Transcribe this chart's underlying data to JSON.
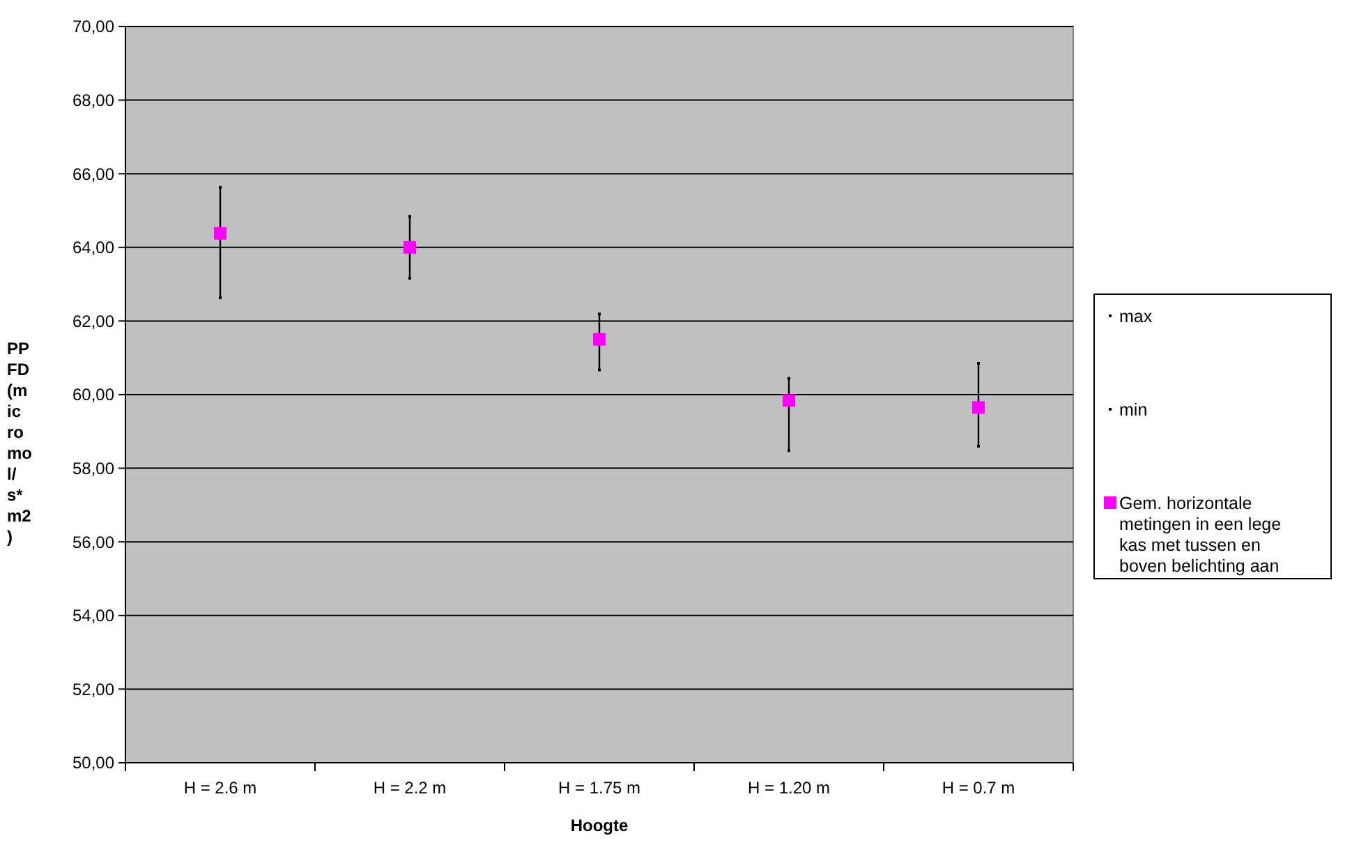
{
  "chart_data": {
    "type": "scatter",
    "xlabel": "Hoogte",
    "ylabel": "PPFD (micromol/s*m2)",
    "categories": [
      "H = 2.6 m",
      "H = 2.2 m",
      "H = 1.75 m",
      "H = 1.20 m",
      "H = 0.7 m"
    ],
    "series": [
      {
        "name": "max",
        "color": "#000000",
        "marker": "square",
        "values": [
          65.63,
          64.84,
          62.19,
          60.44,
          60.85
        ]
      },
      {
        "name": "min",
        "color": "#000000",
        "marker": "square",
        "values": [
          62.63,
          63.16,
          60.67,
          58.48,
          58.6
        ]
      },
      {
        "name": "Gem. horizontale metingen in een lege kas met tussen en boven belichting aan",
        "color": "#ff00ff",
        "marker": "square",
        "values": [
          64.38,
          64.0,
          61.5,
          59.84,
          59.65
        ]
      }
    ],
    "ylim": [
      50,
      70
    ],
    "yticks": [
      {
        "value": 50,
        "label": "50,00"
      },
      {
        "value": 52,
        "label": "52,00"
      },
      {
        "value": 54,
        "label": "54,00"
      },
      {
        "value": 56,
        "label": "56,00"
      },
      {
        "value": 58,
        "label": "58,00"
      },
      {
        "value": 60,
        "label": "60,00"
      },
      {
        "value": 62,
        "label": "62,00"
      },
      {
        "value": 64,
        "label": "64,00"
      },
      {
        "value": 66,
        "label": "66,00"
      },
      {
        "value": 68,
        "label": "68,00"
      },
      {
        "value": 70,
        "label": "70,00"
      }
    ],
    "grid": "y",
    "legend": "right"
  }
}
